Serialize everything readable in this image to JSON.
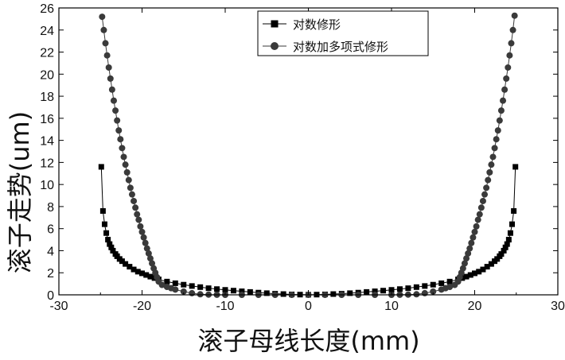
{
  "chart_data": {
    "type": "scatter",
    "xlabel": "滚子母线长度(mm)",
    "ylabel": "滚子走势(um)",
    "xlim": [
      -30,
      30
    ],
    "ylim": [
      0,
      26
    ],
    "x_ticks": [
      -30,
      -20,
      -10,
      0,
      10,
      20,
      30
    ],
    "y_ticks": [
      0,
      2,
      4,
      6,
      8,
      10,
      12,
      14,
      16,
      18,
      20,
      22,
      24,
      26
    ],
    "grid": false,
    "legend_position": "top-right",
    "series": [
      {
        "name": "对数修形",
        "marker": "square",
        "color": "#000000",
        "points": [
          [
            -24.9,
            11.6
          ],
          [
            -24.7,
            7.6
          ],
          [
            -24.5,
            6.4
          ],
          [
            -24.3,
            5.6
          ],
          [
            -24.1,
            5.0
          ],
          [
            -23.9,
            4.6
          ],
          [
            -23.7,
            4.3
          ],
          [
            -23.5,
            4.0
          ],
          [
            -23.2,
            3.7
          ],
          [
            -23.0,
            3.5
          ],
          [
            -22.7,
            3.25
          ],
          [
            -22.4,
            3.05
          ],
          [
            -22.0,
            2.8
          ],
          [
            -21.5,
            2.55
          ],
          [
            -21.0,
            2.3
          ],
          [
            -20.5,
            2.1
          ],
          [
            -20.0,
            1.95
          ],
          [
            -19.5,
            1.8
          ],
          [
            -19.0,
            1.65
          ],
          [
            -18.5,
            1.52
          ],
          [
            -18.0,
            1.4
          ],
          [
            -17.0,
            1.2
          ],
          [
            -16.0,
            1.05
          ],
          [
            -15.0,
            0.92
          ],
          [
            -14.0,
            0.8
          ],
          [
            -13.0,
            0.7
          ],
          [
            -12.0,
            0.6
          ],
          [
            -11.0,
            0.52
          ],
          [
            -10.0,
            0.45
          ],
          [
            -9.0,
            0.38
          ],
          [
            -8.0,
            0.32
          ],
          [
            -7.0,
            0.26
          ],
          [
            -6.0,
            0.2
          ],
          [
            -5.0,
            0.15
          ],
          [
            -4.0,
            0.1
          ],
          [
            -3.0,
            0.07
          ],
          [
            -2.0,
            0.04
          ],
          [
            -1.0,
            0.02
          ],
          [
            0.0,
            0.01
          ],
          [
            1.0,
            0.02
          ],
          [
            2.0,
            0.04
          ],
          [
            3.0,
            0.07
          ],
          [
            4.0,
            0.1
          ],
          [
            5.0,
            0.15
          ],
          [
            6.0,
            0.2
          ],
          [
            7.0,
            0.26
          ],
          [
            8.0,
            0.32
          ],
          [
            9.0,
            0.38
          ],
          [
            10.0,
            0.45
          ],
          [
            11.0,
            0.52
          ],
          [
            12.0,
            0.6
          ],
          [
            13.0,
            0.7
          ],
          [
            14.0,
            0.8
          ],
          [
            15.0,
            0.92
          ],
          [
            16.0,
            1.05
          ],
          [
            17.0,
            1.2
          ],
          [
            18.0,
            1.4
          ],
          [
            18.5,
            1.52
          ],
          [
            19.0,
            1.65
          ],
          [
            19.5,
            1.8
          ],
          [
            20.0,
            1.95
          ],
          [
            20.5,
            2.1
          ],
          [
            21.0,
            2.3
          ],
          [
            21.5,
            2.55
          ],
          [
            22.0,
            2.8
          ],
          [
            22.4,
            3.05
          ],
          [
            22.7,
            3.25
          ],
          [
            23.0,
            3.5
          ],
          [
            23.2,
            3.7
          ],
          [
            23.5,
            4.0
          ],
          [
            23.7,
            4.3
          ],
          [
            23.9,
            4.6
          ],
          [
            24.1,
            5.0
          ],
          [
            24.3,
            5.6
          ],
          [
            24.5,
            6.4
          ],
          [
            24.7,
            7.6
          ],
          [
            24.9,
            11.6
          ]
        ]
      },
      {
        "name": "对数加多项式修形",
        "marker": "circle",
        "color": "#3a3a3a",
        "points": [
          [
            -24.8,
            25.2
          ],
          [
            -24.6,
            24.0
          ],
          [
            -24.4,
            22.8
          ],
          [
            -24.2,
            21.7
          ],
          [
            -24.0,
            20.6
          ],
          [
            -23.8,
            19.6
          ],
          [
            -23.6,
            18.6
          ],
          [
            -23.4,
            17.6
          ],
          [
            -23.2,
            16.7
          ],
          [
            -23.0,
            15.8
          ],
          [
            -22.8,
            14.9
          ],
          [
            -22.6,
            14.1
          ],
          [
            -22.4,
            13.3
          ],
          [
            -22.2,
            12.5
          ],
          [
            -22.0,
            11.8
          ],
          [
            -21.8,
            11.1
          ],
          [
            -21.6,
            10.4
          ],
          [
            -21.4,
            9.7
          ],
          [
            -21.2,
            9.1
          ],
          [
            -21.0,
            8.5
          ],
          [
            -20.8,
            7.9
          ],
          [
            -20.6,
            7.3
          ],
          [
            -20.4,
            6.8
          ],
          [
            -20.2,
            6.2
          ],
          [
            -20.0,
            5.7
          ],
          [
            -19.8,
            5.2
          ],
          [
            -19.6,
            4.7
          ],
          [
            -19.4,
            4.2
          ],
          [
            -19.2,
            3.75
          ],
          [
            -19.0,
            3.3
          ],
          [
            -18.8,
            2.85
          ],
          [
            -18.6,
            2.4
          ],
          [
            -18.4,
            2.0
          ],
          [
            -18.2,
            1.6
          ],
          [
            -18.0,
            1.2
          ],
          [
            -17.6,
            0.9
          ],
          [
            -17.0,
            0.72
          ],
          [
            -16.5,
            0.6
          ],
          [
            -16.0,
            0.48
          ],
          [
            -15.0,
            0.3
          ],
          [
            -14.0,
            0.15
          ],
          [
            -13.0,
            0.05
          ],
          [
            -12.0,
            0.02
          ],
          [
            -11.0,
            0.01
          ],
          [
            -10.0,
            0.0
          ],
          [
            -8.0,
            0.0
          ],
          [
            -6.0,
            0.0
          ],
          [
            -4.0,
            0.0
          ],
          [
            -2.0,
            0.0
          ],
          [
            0.0,
            0.0
          ],
          [
            2.0,
            0.0
          ],
          [
            4.0,
            0.0
          ],
          [
            6.0,
            0.0
          ],
          [
            8.0,
            0.0
          ],
          [
            10.0,
            0.0
          ],
          [
            11.0,
            0.01
          ],
          [
            12.0,
            0.02
          ],
          [
            13.0,
            0.05
          ],
          [
            14.0,
            0.15
          ],
          [
            15.0,
            0.3
          ],
          [
            16.0,
            0.48
          ],
          [
            16.5,
            0.6
          ],
          [
            17.0,
            0.72
          ],
          [
            17.6,
            0.9
          ],
          [
            18.0,
            1.2
          ],
          [
            18.2,
            1.6
          ],
          [
            18.4,
            2.0
          ],
          [
            18.6,
            2.4
          ],
          [
            18.8,
            2.85
          ],
          [
            19.0,
            3.3
          ],
          [
            19.2,
            3.75
          ],
          [
            19.4,
            4.2
          ],
          [
            19.6,
            4.7
          ],
          [
            19.8,
            5.2
          ],
          [
            20.0,
            5.7
          ],
          [
            20.2,
            6.2
          ],
          [
            20.4,
            6.8
          ],
          [
            20.6,
            7.3
          ],
          [
            20.8,
            7.9
          ],
          [
            21.0,
            8.5
          ],
          [
            21.2,
            9.1
          ],
          [
            21.4,
            9.7
          ],
          [
            21.6,
            10.4
          ],
          [
            21.8,
            11.1
          ],
          [
            22.0,
            11.8
          ],
          [
            22.2,
            12.5
          ],
          [
            22.4,
            13.3
          ],
          [
            22.6,
            14.1
          ],
          [
            22.8,
            14.9
          ],
          [
            23.0,
            15.8
          ],
          [
            23.2,
            16.7
          ],
          [
            23.4,
            17.6
          ],
          [
            23.6,
            18.6
          ],
          [
            23.8,
            19.6
          ],
          [
            24.0,
            20.6
          ],
          [
            24.2,
            21.7
          ],
          [
            24.4,
            22.8
          ],
          [
            24.6,
            24.0
          ],
          [
            24.8,
            25.3
          ]
        ]
      }
    ]
  }
}
